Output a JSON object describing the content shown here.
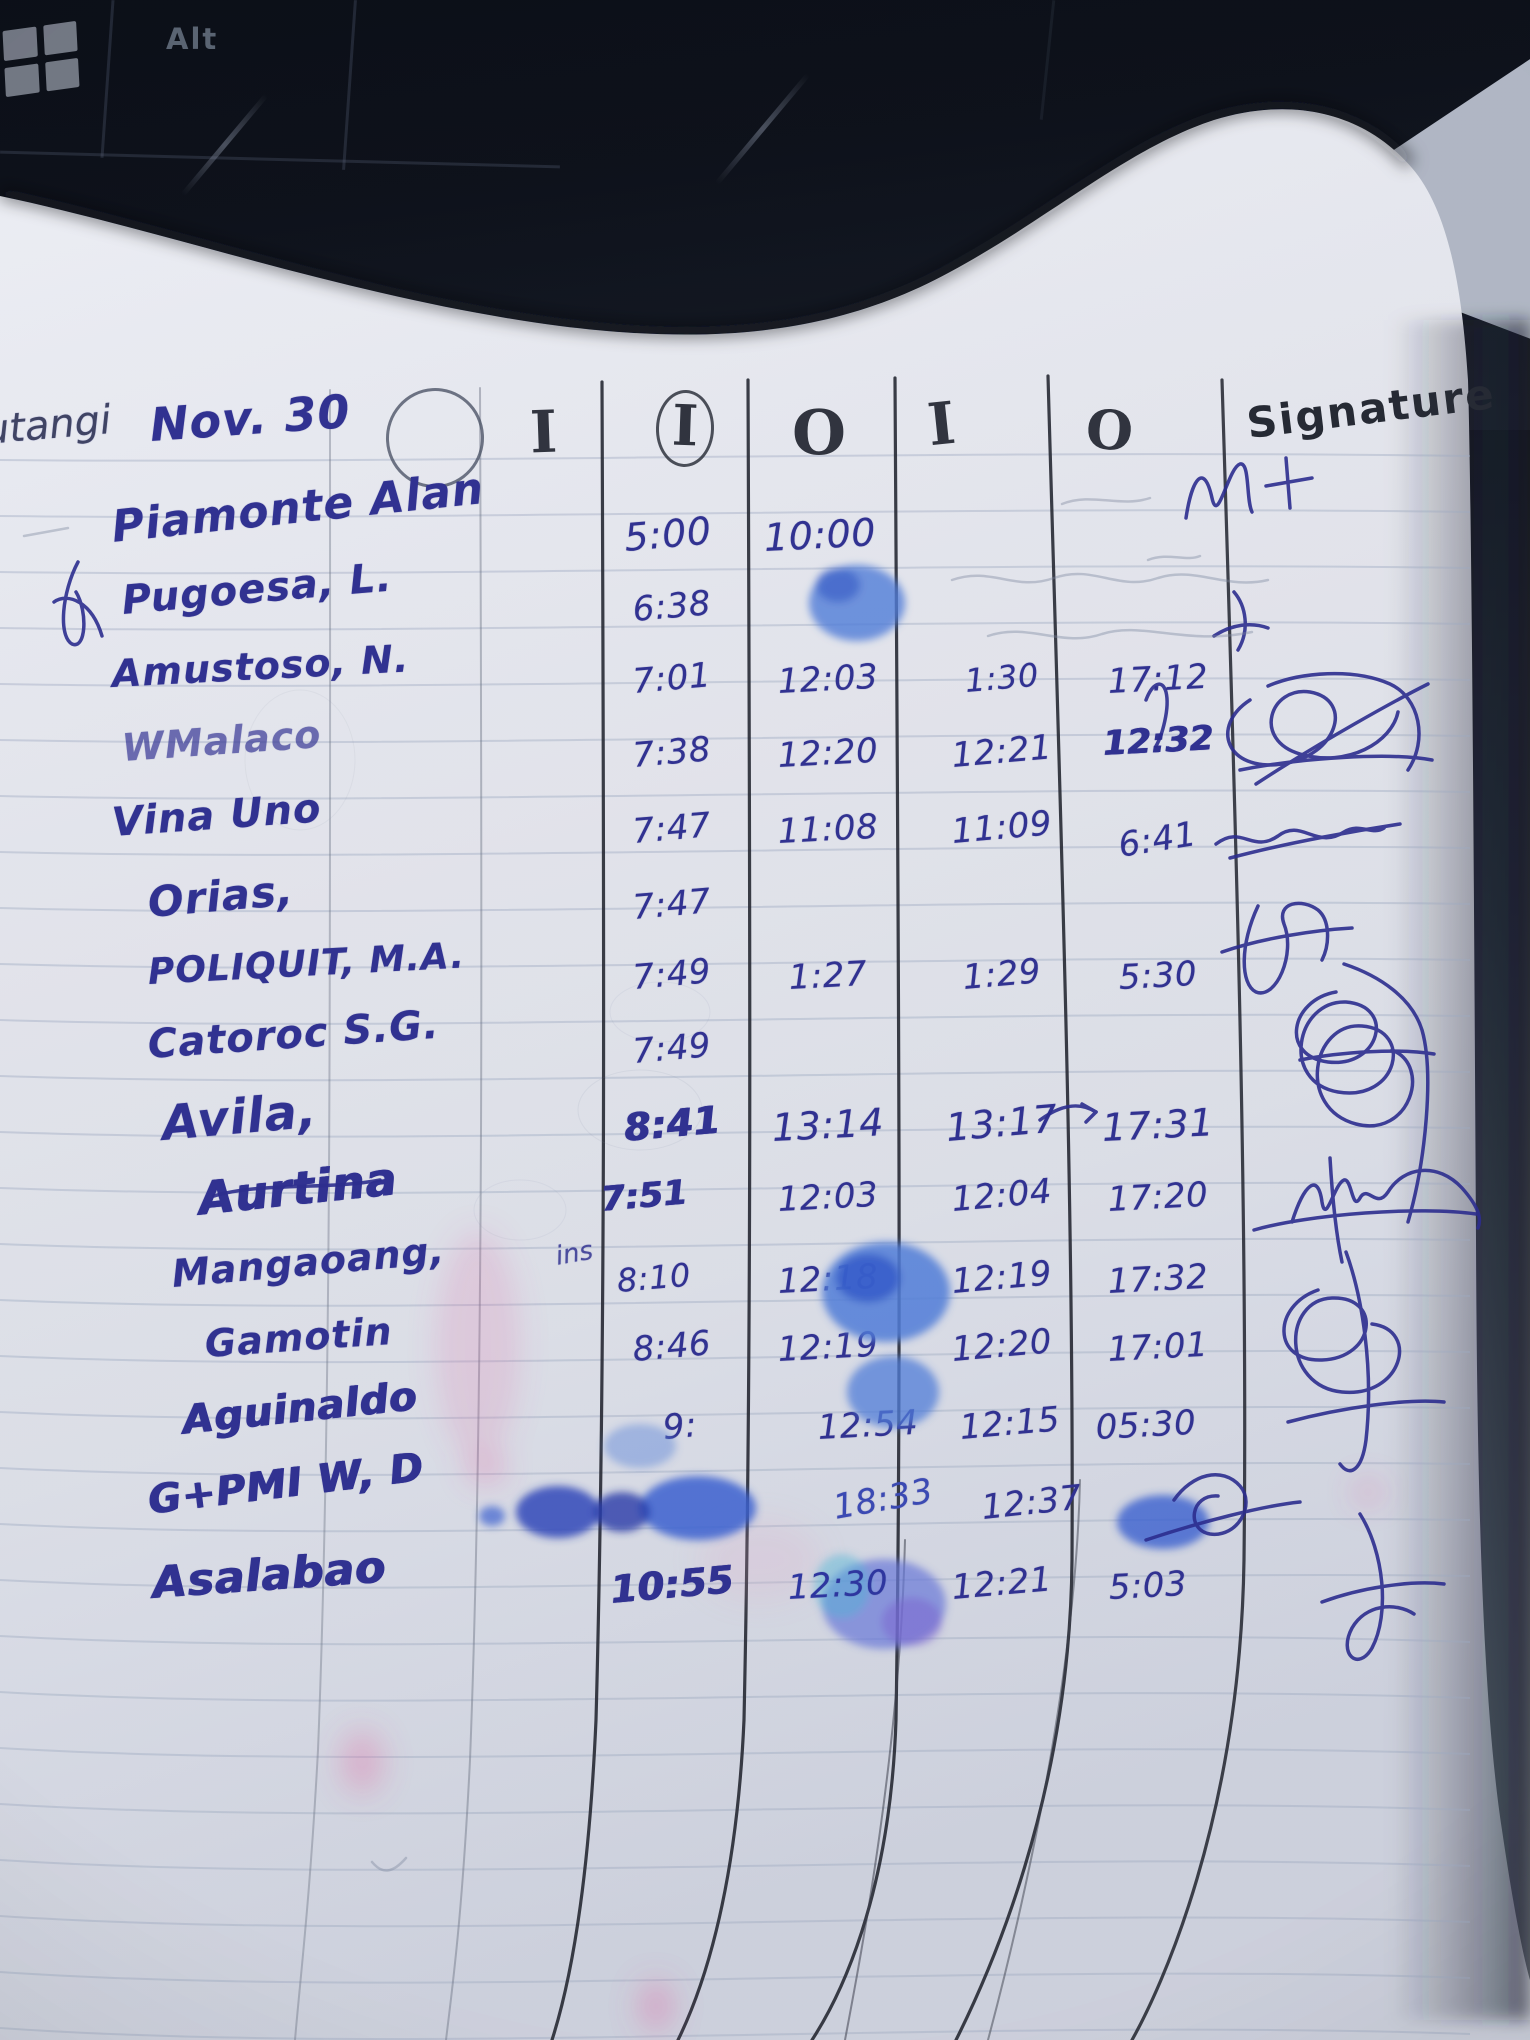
{
  "photo": {
    "background": "laptop-keyboard",
    "keyboard_keys": [
      {
        "label": "Alt"
      }
    ]
  },
  "sheet": {
    "margin_text": "utangi",
    "date": "Nov. 30",
    "columns": [
      "I",
      "I",
      "O",
      "I",
      "O",
      "Signature"
    ],
    "rows": [
      {
        "name": "Piamonte Alan",
        "times": [
          "5:00",
          "10:00",
          "",
          "",
          ""
        ],
        "signature": "M+ mark"
      },
      {
        "name": "Pugoesa, L.",
        "times": [
          "6:38",
          "",
          "",
          "",
          ""
        ],
        "signature": ""
      },
      {
        "name": "Amustoso, N.",
        "times": [
          "7:01",
          "12:03",
          "1:30",
          "17:12",
          ""
        ],
        "signature": "small mark"
      },
      {
        "name": "WMalaco",
        "times": [
          "7:38",
          "12:20",
          "12:21",
          "12:32",
          ""
        ],
        "signature": "scribble"
      },
      {
        "name": "Vina Uno",
        "times": [
          "7:47",
          "11:08",
          "11:09",
          "6:41",
          ""
        ],
        "signature": "strike scribble"
      },
      {
        "name": "Orias,",
        "times": [
          "7:47",
          "",
          "",
          "",
          ""
        ],
        "signature": ""
      },
      {
        "name": "POLIQUIT, M.A.",
        "times": [
          "7:49",
          "1:27",
          "1:29",
          "5:30",
          ""
        ],
        "signature": "scribble"
      },
      {
        "name": "Catoroc S.G.",
        "times": [
          "7:49",
          "",
          "",
          "",
          ""
        ],
        "signature": "loop scribble"
      },
      {
        "name": "Avila,",
        "times": [
          "8:41",
          "13:14",
          "13:17",
          "17:31",
          ""
        ],
        "signature": "loop scribble"
      },
      {
        "name": "Aurtina",
        "times": [
          "7:51",
          "12:03",
          "12:04",
          "17:20",
          ""
        ],
        "signature": "flourish"
      },
      {
        "name": "Mangaoang,",
        "note": "ins",
        "times": [
          "8:10",
          "12:18",
          "12:19",
          "17:32",
          ""
        ],
        "signature": "loop scribble"
      },
      {
        "name": "Gamotin",
        "times": [
          "8:46",
          "12:19",
          "12:20",
          "17:01",
          ""
        ],
        "signature": "loop scribble"
      },
      {
        "name": "Aguinaldo",
        "times": [
          "9:",
          "12:54",
          "12:15",
          "05:30",
          ""
        ],
        "signature": ""
      },
      {
        "name": "G+PMI W, D",
        "times": [
          "",
          "18:33",
          "12:37",
          "",
          ""
        ],
        "signature": "smudged scribble"
      },
      {
        "name": "Asalabao",
        "times": [
          "10:55",
          "12:30",
          "12:21",
          "5:03",
          ""
        ],
        "signature": "flourish"
      }
    ]
  },
  "colors": {
    "ink": "#2e2e8f",
    "blue_smudge": "#4a77d8",
    "pencil": "#32353f",
    "paper": "#e9eaef"
  }
}
